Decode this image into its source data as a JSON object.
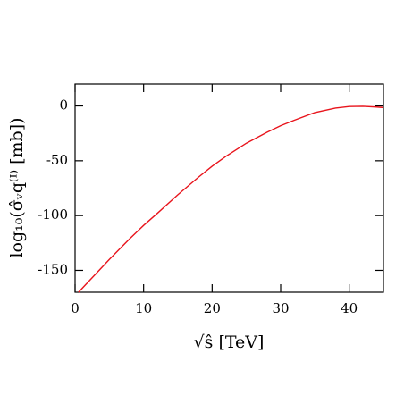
{
  "chart_data": {
    "type": "line",
    "x_label": "√ŝ [TeV]",
    "y_label": "log₁₀(σ̂ᵥq⁽ᴵ⁾ [mb])",
    "series": [
      {
        "color": "#e8141c",
        "x": [
          0.5,
          2,
          5,
          8,
          10,
          12,
          15,
          18,
          20,
          22,
          25,
          28,
          30,
          32,
          35,
          38,
          40,
          42,
          44,
          45
        ],
        "values": [
          -170,
          -160,
          -140,
          -121,
          -109,
          -98,
          -81,
          -65,
          -55,
          -46,
          -34,
          -24,
          -18,
          -13,
          -6,
          -2,
          -0.5,
          -0.3,
          -1,
          -1.5
        ]
      }
    ],
    "xlim": [
      0,
      45
    ],
    "ylim": [
      -170,
      20
    ],
    "xticks": [
      0,
      10,
      20,
      30,
      40
    ],
    "yticks": [
      -150,
      -100,
      -50,
      0
    ]
  }
}
